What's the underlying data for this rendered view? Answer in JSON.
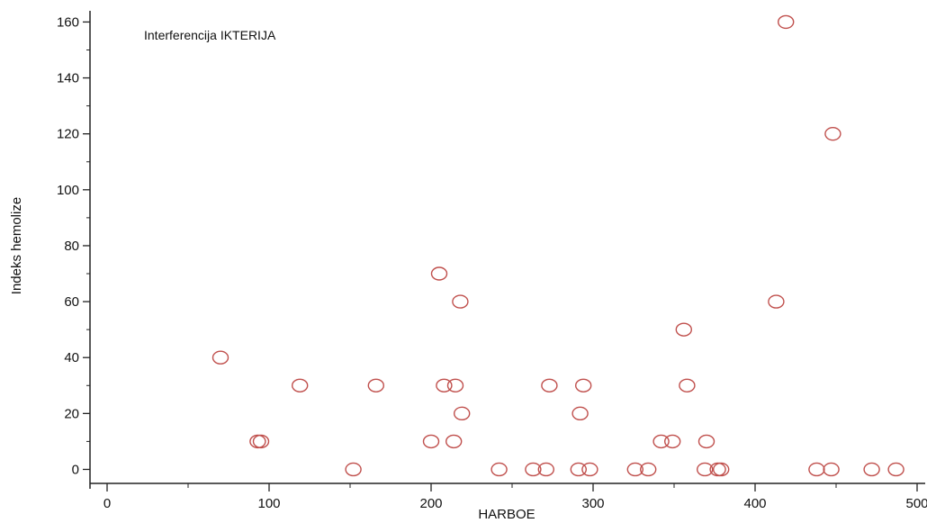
{
  "chart_data": {
    "type": "scatter",
    "annotation": "Interferencija IKTERIJA",
    "xlabel": "HARBOE",
    "ylabel": "Indeks hemolize",
    "xlim": [
      -5,
      505
    ],
    "ylim": [
      -5,
      164
    ],
    "x_ticks": [
      0,
      100,
      200,
      300,
      400,
      500
    ],
    "y_ticks": [
      0,
      20,
      40,
      60,
      80,
      100,
      120,
      140,
      160
    ],
    "grid": false,
    "marker": "open-circle",
    "marker_color": "#c0504d",
    "points": [
      {
        "x": 70,
        "y": 40
      },
      {
        "x": 93,
        "y": 10
      },
      {
        "x": 95,
        "y": 10
      },
      {
        "x": 119,
        "y": 30
      },
      {
        "x": 152,
        "y": 0
      },
      {
        "x": 166,
        "y": 30
      },
      {
        "x": 200,
        "y": 10
      },
      {
        "x": 205,
        "y": 70
      },
      {
        "x": 208,
        "y": 30
      },
      {
        "x": 214,
        "y": 10
      },
      {
        "x": 215,
        "y": 30
      },
      {
        "x": 218,
        "y": 60
      },
      {
        "x": 219,
        "y": 20
      },
      {
        "x": 242,
        "y": 0
      },
      {
        "x": 263,
        "y": 0
      },
      {
        "x": 271,
        "y": 0
      },
      {
        "x": 273,
        "y": 30
      },
      {
        "x": 291,
        "y": 0
      },
      {
        "x": 292,
        "y": 20
      },
      {
        "x": 294,
        "y": 30
      },
      {
        "x": 298,
        "y": 0
      },
      {
        "x": 326,
        "y": 0
      },
      {
        "x": 334,
        "y": 0
      },
      {
        "x": 342,
        "y": 10
      },
      {
        "x": 349,
        "y": 10
      },
      {
        "x": 356,
        "y": 50
      },
      {
        "x": 358,
        "y": 30
      },
      {
        "x": 369,
        "y": 0
      },
      {
        "x": 370,
        "y": 10
      },
      {
        "x": 377,
        "y": 0
      },
      {
        "x": 379,
        "y": 0
      },
      {
        "x": 413,
        "y": 60
      },
      {
        "x": 419,
        "y": 160
      },
      {
        "x": 438,
        "y": 0
      },
      {
        "x": 447,
        "y": 0
      },
      {
        "x": 448,
        "y": 120
      },
      {
        "x": 472,
        "y": 0
      },
      {
        "x": 487,
        "y": 0
      }
    ]
  }
}
